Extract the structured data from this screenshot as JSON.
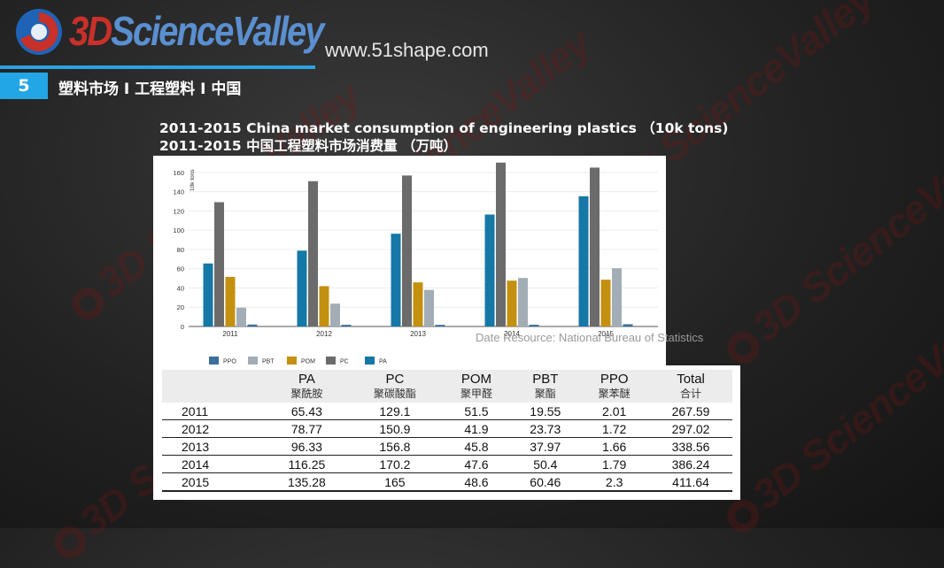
{
  "header": {
    "logo_text_mark": "3D",
    "logo_text_word": "ScienceValley",
    "url": "www.51shape.com",
    "section_number": "5",
    "section_title": "塑料市场 I 工程塑料 I 中国"
  },
  "watermark_text": "3D ScienceValley",
  "chart_title_en": "2011-2015 China market consumption of engineering plastics （10k tons)",
  "chart_title_cn": "2011-2015 中国工程塑料市场消费量 （万吨）",
  "source_note": "Date Resource: National Bureau of Statistics",
  "chart_data": {
    "type": "bar",
    "categories": [
      "2011",
      "2012",
      "2013",
      "2014",
      "2015"
    ],
    "ylabel": "10k tons",
    "ylim": [
      0,
      170
    ],
    "yticks": [
      0,
      20,
      40,
      60,
      80,
      100,
      120,
      140,
      160
    ],
    "grid": true,
    "legend_position": "bottom-left",
    "series": [
      {
        "name": "PA",
        "color": "#1578a6",
        "values": [
          65.43,
          78.77,
          96.33,
          116.25,
          135.28
        ]
      },
      {
        "name": "PC",
        "color": "#6b6b6b",
        "values": [
          129.1,
          150.9,
          156.8,
          170.2,
          165
        ]
      },
      {
        "name": "POM",
        "color": "#c4900f",
        "values": [
          51.5,
          41.9,
          45.8,
          47.6,
          48.6
        ]
      },
      {
        "name": "PBT",
        "color": "#a3adb6",
        "values": [
          19.55,
          23.73,
          37.97,
          50.4,
          60.46
        ]
      },
      {
        "name": "PPO",
        "color": "#3a6f9e",
        "values": [
          2.01,
          1.72,
          1.66,
          1.79,
          2.3
        ]
      }
    ],
    "legend": [
      "PPO",
      "PBT",
      "POM",
      "PC",
      "PA"
    ]
  },
  "table": {
    "headers": [
      {
        "en": "",
        "cn": ""
      },
      {
        "en": "PA",
        "cn": "聚酰胺"
      },
      {
        "en": "PC",
        "cn": "聚碳酸酯"
      },
      {
        "en": "POM",
        "cn": "聚甲醛"
      },
      {
        "en": "PBT",
        "cn": "聚酯"
      },
      {
        "en": "PPO",
        "cn": "聚苯醚"
      },
      {
        "en": "Total",
        "cn": "合计"
      }
    ],
    "rows": [
      [
        "2011",
        "65.43",
        "129.1",
        "51.5",
        "19.55",
        "2.01",
        "267.59"
      ],
      [
        "2012",
        "78.77",
        "150.9",
        "41.9",
        "23.73",
        "1.72",
        "297.02"
      ],
      [
        "2013",
        "96.33",
        "156.8",
        "45.8",
        "37.97",
        "1.66",
        "338.56"
      ],
      [
        "2014",
        "116.25",
        "170.2",
        "47.6",
        "50.4",
        "1.79",
        "386.24"
      ],
      [
        "2015",
        "135.28",
        "165",
        "48.6",
        "60.46",
        "2.3",
        "411.64"
      ]
    ]
  }
}
